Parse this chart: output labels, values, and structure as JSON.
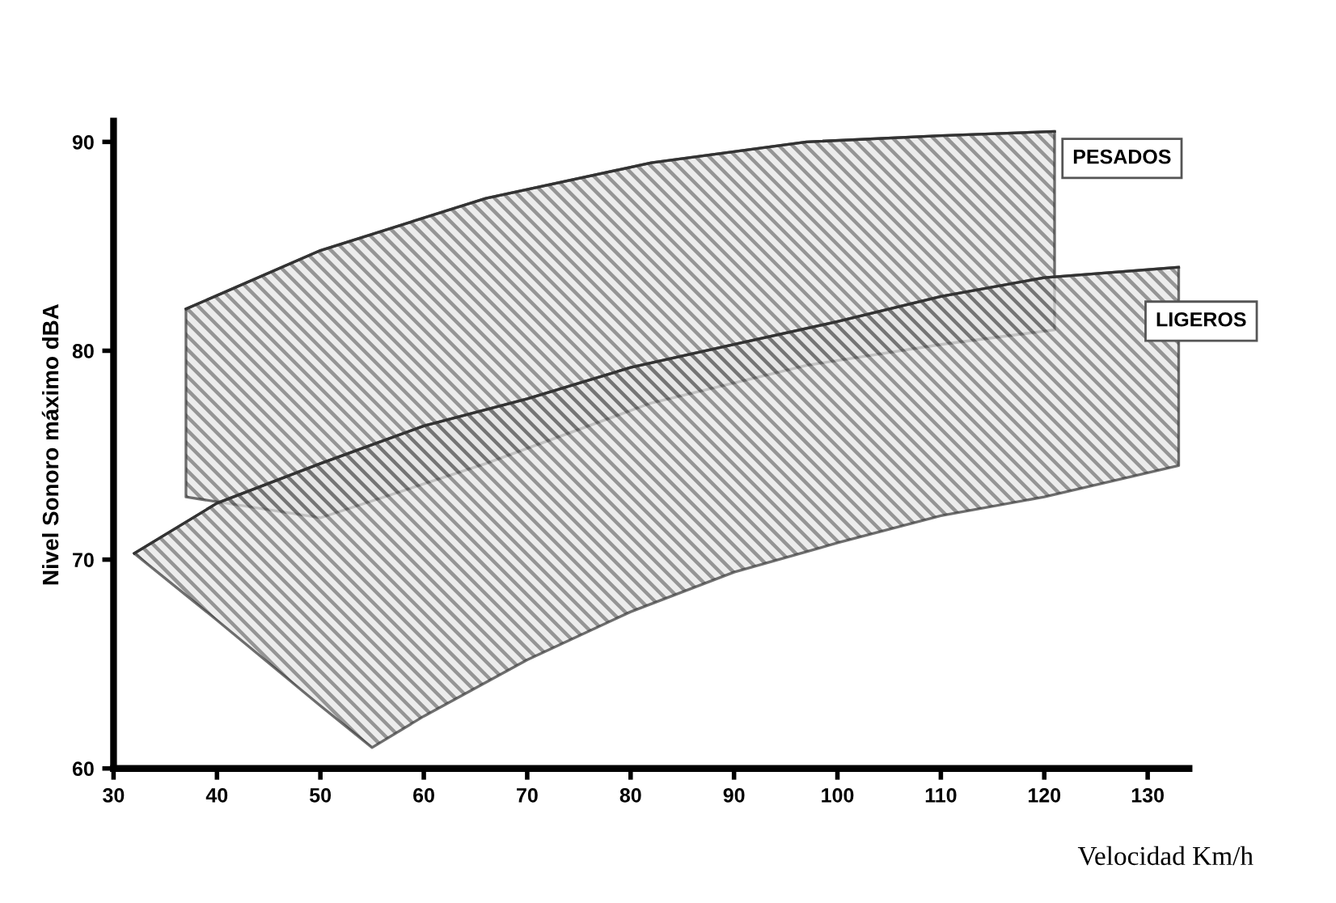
{
  "chart_data": {
    "type": "line",
    "xlabel": "Velocidad Km/h",
    "ylabel": "Nivel Sonoro máximo dBA",
    "xlim": [
      30,
      134
    ],
    "ylim": [
      60,
      91
    ],
    "xticks": [
      30,
      40,
      50,
      60,
      70,
      80,
      90,
      100,
      110,
      120,
      130
    ],
    "yticks": [
      60,
      70,
      80,
      90
    ],
    "grid": false,
    "legend": false,
    "series": [
      {
        "name": "PESADOS",
        "color": "#333333",
        "x": [
          37,
          50,
          66,
          82,
          97,
          110,
          121
        ],
        "values": [
          82.0,
          84.8,
          87.3,
          89.0,
          90.0,
          90.3,
          90.5
        ],
        "upper": [
          82.0,
          84.8,
          87.3,
          89.0,
          90.0,
          90.3,
          90.5
        ],
        "lower": [
          73.0,
          72.0,
          74.6,
          77.5,
          79.3,
          80.3,
          81.0
        ]
      },
      {
        "name": "LIGEROS",
        "color": "#333333",
        "x": [
          32,
          40,
          50,
          55,
          60,
          70,
          80,
          90,
          100,
          110,
          120,
          133
        ],
        "values": [
          70.3,
          72.7,
          74.6,
          75.5,
          76.4,
          77.7,
          79.2,
          80.3,
          81.4,
          82.6,
          83.5,
          84.0
        ],
        "upper": [
          70.3,
          72.7,
          74.6,
          75.5,
          76.4,
          77.7,
          79.2,
          80.3,
          81.4,
          82.6,
          83.5,
          84.0
        ],
        "lower": [
          70.3,
          67.1,
          63.0,
          61.0,
          62.5,
          65.2,
          67.5,
          69.4,
          70.8,
          72.1,
          73.0,
          74.5
        ]
      }
    ]
  }
}
